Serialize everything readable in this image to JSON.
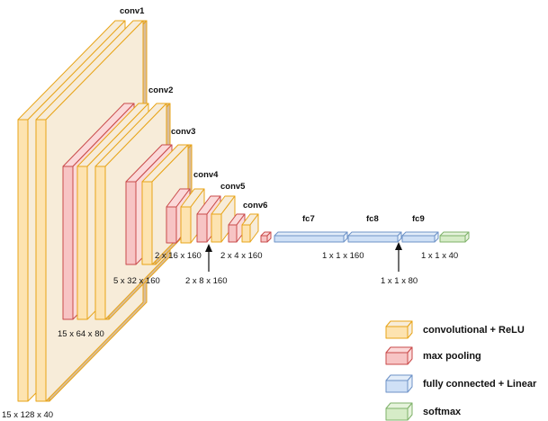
{
  "colors": {
    "conv_fill": "#fde3b0",
    "conv_side": "#f7ecd9",
    "conv_stroke": "#e8a418",
    "shadow_fill": "#d8bd9b",
    "pool_fill": "#f7c4c4",
    "pool_top": "#fbd9d9",
    "pool_stroke": "#c94a4a",
    "fc_fill": "#cfe0f6",
    "fc_top": "#e3edf9",
    "fc_stroke": "#6d92c7",
    "soft_fill": "#d6ecc7",
    "soft_top": "#e6f3dc",
    "soft_stroke": "#7fb26a"
  },
  "layers": {
    "conv1": "conv1",
    "conv2": "conv2",
    "conv3": "conv3",
    "conv4": "conv4",
    "conv5": "conv5",
    "conv6": "conv6",
    "fc7": "fc7",
    "fc8": "fc8",
    "fc9": "fc9"
  },
  "dims": {
    "d1": "15 x 128 x 40",
    "d2": "15 x 64 x 80",
    "d3": "5 x 32 x 160",
    "d4": "2 x 16 x 160",
    "d5": "2 x 8 x 160",
    "d6": "2 x 4 x 160",
    "d7": "1 x 1 x 160",
    "d8": "1 x 1 x 80",
    "d9": "1 x 1 x 40"
  },
  "legend": {
    "conv": "convolutional + ReLU",
    "pool": "max pooling",
    "fc": "fully connected + Linear",
    "softmax": "softmax"
  }
}
